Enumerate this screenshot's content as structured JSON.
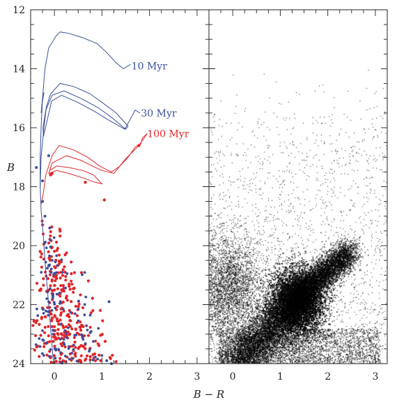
{
  "colors": {
    "blue": "#3a4f9c",
    "red": "#e0262a",
    "black": "#000000",
    "frame": "#222222"
  },
  "chart_data": {
    "type": "scatter",
    "xlabel": "B − R",
    "ylabel": "B",
    "xlim": [
      -0.5,
      3.25
    ],
    "ylim": [
      24,
      12
    ],
    "y_inverted": true,
    "grid": false,
    "xticks": [
      0,
      1,
      2,
      3
    ],
    "yticks": [
      12,
      14,
      16,
      18,
      20,
      22,
      24
    ],
    "xtick_labels": [
      "0",
      "1",
      "2",
      "3"
    ],
    "ytick_labels": [
      "12",
      "14",
      "16",
      "18",
      "20",
      "22",
      "24"
    ],
    "panels": [
      {
        "id": "left",
        "isochrones": [
          {
            "name": "10 Myr",
            "color": "blue",
            "label_x": 1.62,
            "label_y": 13.9,
            "points": [
              [
                -0.02,
                24
              ],
              [
                -0.12,
                22
              ],
              [
                -0.2,
                20.5
              ],
              [
                -0.24,
                19.5
              ],
              [
                -0.28,
                18.8
              ],
              [
                -0.3,
                18
              ],
              [
                -0.3,
                17
              ],
              [
                -0.28,
                16
              ],
              [
                -0.25,
                15
              ],
              [
                -0.2,
                14
              ],
              [
                -0.12,
                13.3
              ],
              [
                0.03,
                12.9
              ],
              [
                0.12,
                12.75
              ],
              [
                0.3,
                12.8
              ],
              [
                0.6,
                12.95
              ],
              [
                0.9,
                13.15
              ],
              [
                1.1,
                13.45
              ],
              [
                1.3,
                13.8
              ],
              [
                1.45,
                14.0
              ],
              [
                1.6,
                13.85
              ]
            ]
          },
          {
            "name": "30 Myr",
            "color": "blue",
            "label_x": 1.82,
            "label_y": 15.5,
            "points": [
              [
                -0.3,
                18
              ],
              [
                -0.28,
                17
              ],
              [
                -0.22,
                16
              ],
              [
                -0.17,
                15.3
              ],
              [
                -0.08,
                14.85
              ],
              [
                0.12,
                14.5
              ],
              [
                0.4,
                14.6
              ],
              [
                0.75,
                14.85
              ],
              [
                1.05,
                15.2
              ],
              [
                1.3,
                15.5
              ],
              [
                1.55,
                15.95
              ],
              [
                1.5,
                16.05
              ],
              [
                1.2,
                15.65
              ],
              [
                0.9,
                15.3
              ],
              [
                0.55,
                15.0
              ],
              [
                0.2,
                14.75
              ],
              [
                -0.05,
                14.9
              ],
              [
                -0.18,
                15.4
              ],
              [
                -0.24,
                16.0
              ],
              [
                -0.23,
                16.3
              ],
              [
                -0.06,
                15.1
              ],
              [
                0.15,
                14.9
              ],
              [
                0.5,
                15.15
              ],
              [
                0.85,
                15.45
              ],
              [
                1.15,
                15.75
              ],
              [
                1.48,
                16.05
              ],
              [
                1.7,
                15.4
              ],
              [
                1.8,
                15.5
              ]
            ]
          },
          {
            "name": "100 Myr",
            "color": "red",
            "label_x": 1.95,
            "label_y": 16.2,
            "points": [
              [
                -0.28,
                18.6
              ],
              [
                -0.24,
                18.3
              ],
              [
                -0.18,
                17.6
              ],
              [
                -0.05,
                16.95
              ],
              [
                0.1,
                16.6
              ],
              [
                0.4,
                16.75
              ],
              [
                0.7,
                17.0
              ],
              [
                0.95,
                17.3
              ],
              [
                1.2,
                17.5
              ],
              [
                1.38,
                17.3
              ],
              [
                1.55,
                17.0
              ],
              [
                1.7,
                16.65
              ],
              [
                1.82,
                16.55
              ],
              [
                1.85,
                16.35
              ],
              [
                1.95,
                16.2
              ],
              [
                1.78,
                16.6
              ],
              [
                1.5,
                17.05
              ],
              [
                1.25,
                17.55
              ],
              [
                1.0,
                17.45
              ],
              [
                0.8,
                17.3
              ],
              [
                0.55,
                17.1
              ],
              [
                0.25,
                16.95
              ],
              [
                -0.05,
                17.2
              ],
              [
                -0.12,
                17.55
              ],
              [
                0.05,
                17.45
              ],
              [
                0.3,
                17.55
              ],
              [
                0.6,
                17.7
              ],
              [
                0.85,
                17.85
              ],
              [
                1.0,
                17.9
              ],
              [
                0.82,
                17.6
              ],
              [
                0.6,
                17.45
              ],
              [
                0.3,
                17.35
              ],
              [
                0.05,
                17.3
              ],
              [
                -0.1,
                17.45
              ]
            ]
          }
        ],
        "extra_track": {
          "color": "blue",
          "points": [
            [
              -0.28,
              15.5
            ],
            [
              -0.25,
              15.0
            ],
            [
              -0.22,
              14.8
            ],
            [
              -0.25,
              15.1
            ]
          ]
        },
        "blue_stars": [
          [
            -0.38,
            17.35
          ],
          [
            -0.25,
            17.8
          ],
          [
            -0.12,
            16.95
          ],
          [
            -0.25,
            18.5
          ],
          [
            1.15,
            21.9
          ],
          [
            1.1,
            23.9
          ],
          [
            1.2,
            24.0
          ],
          [
            -0.2,
            19.0
          ],
          [
            -0.1,
            19.4
          ]
        ],
        "red_stars": [
          [
            -0.05,
            17.55
          ],
          [
            -0.08,
            17.6
          ],
          [
            0.65,
            17.85
          ],
          [
            1.05,
            18.45
          ],
          [
            1.78,
            16.6
          ],
          [
            -0.3,
            20.2
          ]
        ],
        "generated": {
          "blue_count": 120,
          "red_count": 300,
          "cluster_x": [
            -0.45,
            1.3
          ],
          "cluster_y": [
            19.0,
            24.0
          ]
        }
      },
      {
        "id": "right",
        "field_density": "dense",
        "main_clump": [
          1.35,
          21.9
        ]
      }
    ]
  }
}
